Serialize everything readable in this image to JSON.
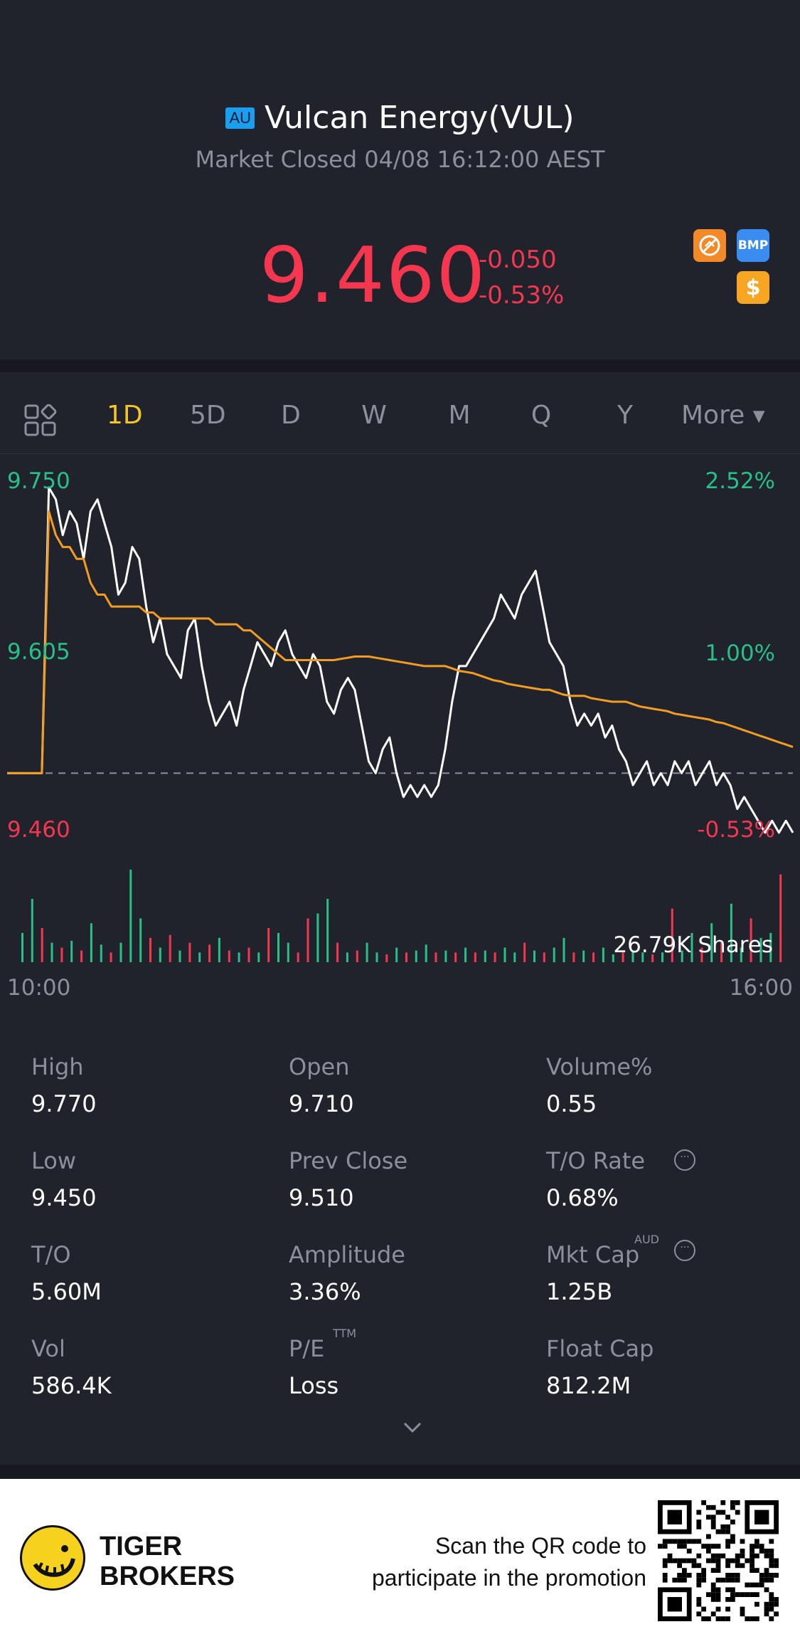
{
  "header": {
    "market_badge": "AU",
    "title": "Vulcan Energy(VUL)",
    "status": "Market Closed 04/08 16:12:00 AEST",
    "price": "9.460",
    "change": "-0.050",
    "change_pct": "-0.53%",
    "badges": [
      {
        "icon": "no-short-icon"
      },
      {
        "icon": "bmp-icon",
        "label": "BMP"
      },
      {
        "icon": "dollar-icon",
        "label": "$"
      }
    ]
  },
  "tabs": {
    "items": [
      {
        "label": "1D",
        "active": true
      },
      {
        "label": "5D",
        "active": false
      },
      {
        "label": "D",
        "active": false
      },
      {
        "label": "W",
        "active": false
      },
      {
        "label": "M",
        "active": false
      },
      {
        "label": "Q",
        "active": false
      },
      {
        "label": "Y",
        "active": false
      }
    ],
    "more_label": "More"
  },
  "chart_data": {
    "type": "line",
    "y_left_ticks": [
      "9.750",
      "9.605",
      "9.460"
    ],
    "y_right_ticks": [
      "2.52%",
      "1.00%",
      "-0.53%"
    ],
    "x_labels": [
      "10:00",
      "16:00"
    ],
    "ylim": [
      9.46,
      9.75
    ],
    "prev_close": 9.51,
    "volume_label": "26.79K Shares",
    "colors": {
      "price": "#ffffff",
      "avg": "#f39c24",
      "up": "#27c187",
      "down": "#f5364f"
    },
    "series": [
      {
        "values": [
          9.51,
          9.51,
          9.51,
          9.51,
          9.51,
          9.51,
          9.75,
          9.74,
          9.71,
          9.73,
          9.72,
          9.69,
          9.73,
          9.74,
          9.72,
          9.7,
          9.66,
          9.67,
          9.7,
          9.69,
          9.65,
          9.62,
          9.64,
          9.61,
          9.6,
          9.59,
          9.63,
          9.64,
          9.6,
          9.57,
          9.55,
          9.56,
          9.57,
          9.55,
          9.58,
          9.6,
          9.62,
          9.61,
          9.6,
          9.62,
          9.63,
          9.61,
          9.6,
          9.59,
          9.61,
          9.6,
          9.57,
          9.56,
          9.58,
          9.59,
          9.58,
          9.55,
          9.52,
          9.51,
          9.53,
          9.54,
          9.51,
          9.49,
          9.5,
          9.49,
          9.5,
          9.49,
          9.5,
          9.53,
          9.57,
          9.6,
          9.6,
          9.61,
          9.62,
          9.63,
          9.64,
          9.66,
          9.65,
          9.64,
          9.66,
          9.67,
          9.68,
          9.65,
          9.62,
          9.61,
          9.6,
          9.57,
          9.55,
          9.56,
          9.55,
          9.56,
          9.54,
          9.55,
          9.53,
          9.52,
          9.5,
          9.51,
          9.52,
          9.5,
          9.51,
          9.5,
          9.52,
          9.51,
          9.52,
          9.5,
          9.51,
          9.52,
          9.5,
          9.51,
          9.5,
          9.48,
          9.49,
          9.48,
          9.47,
          9.46,
          9.47,
          9.46,
          9.47,
          9.46
        ]
      },
      {
        "values": [
          9.51,
          9.51,
          9.51,
          9.51,
          9.51,
          9.51,
          9.73,
          9.71,
          9.7,
          9.7,
          9.69,
          9.69,
          9.67,
          9.66,
          9.66,
          9.65,
          9.65,
          9.65,
          9.65,
          9.65,
          9.645,
          9.645,
          9.64,
          9.64,
          9.64,
          9.64,
          9.64,
          9.64,
          9.64,
          9.64,
          9.635,
          9.635,
          9.635,
          9.635,
          9.63,
          9.63,
          9.625,
          9.62,
          9.615,
          9.61,
          9.605,
          9.605,
          9.605,
          9.605,
          9.605,
          9.605,
          9.605,
          9.605,
          9.606,
          9.607,
          9.608,
          9.608,
          9.608,
          9.607,
          9.606,
          9.605,
          9.604,
          9.603,
          9.602,
          9.601,
          9.6,
          9.6,
          9.6,
          9.6,
          9.598,
          9.596,
          9.595,
          9.594,
          9.592,
          9.59,
          9.588,
          9.587,
          9.585,
          9.584,
          9.583,
          9.582,
          9.581,
          9.58,
          9.58,
          9.578,
          9.576,
          9.575,
          9.575,
          9.575,
          9.573,
          9.572,
          9.571,
          9.57,
          9.57,
          9.57,
          9.568,
          9.566,
          9.565,
          9.564,
          9.563,
          9.562,
          9.56,
          9.559,
          9.558,
          9.557,
          9.556,
          9.555,
          9.553,
          9.552,
          9.55,
          9.548,
          9.546,
          9.544,
          9.542,
          9.54,
          9.538,
          9.536,
          9.534,
          9.532
        ]
      }
    ],
    "volume": [
      {
        "v": 0.3,
        "up": true
      },
      {
        "v": 0.65,
        "up": true
      },
      {
        "v": 0.35,
        "up": false
      },
      {
        "v": 0.2,
        "up": true
      },
      {
        "v": 0.15,
        "up": false
      },
      {
        "v": 0.22,
        "up": true
      },
      {
        "v": 0.12,
        "up": false
      },
      {
        "v": 0.4,
        "up": true
      },
      {
        "v": 0.18,
        "up": true
      },
      {
        "v": 0.1,
        "up": false
      },
      {
        "v": 0.2,
        "up": true
      },
      {
        "v": 0.95,
        "up": true
      },
      {
        "v": 0.45,
        "up": true
      },
      {
        "v": 0.25,
        "up": false
      },
      {
        "v": 0.15,
        "up": true
      },
      {
        "v": 0.28,
        "up": false
      },
      {
        "v": 0.12,
        "up": true
      },
      {
        "v": 0.2,
        "up": false
      },
      {
        "v": 0.1,
        "up": true
      },
      {
        "v": 0.18,
        "up": false
      },
      {
        "v": 0.25,
        "up": true
      },
      {
        "v": 0.12,
        "up": false
      },
      {
        "v": 0.1,
        "up": true
      },
      {
        "v": 0.15,
        "up": false
      },
      {
        "v": 0.1,
        "up": true
      },
      {
        "v": 0.35,
        "up": false
      },
      {
        "v": 0.3,
        "up": true
      },
      {
        "v": 0.2,
        "up": true
      },
      {
        "v": 0.1,
        "up": false
      },
      {
        "v": 0.45,
        "up": false
      },
      {
        "v": 0.5,
        "up": true
      },
      {
        "v": 0.65,
        "up": true
      },
      {
        "v": 0.2,
        "up": false
      },
      {
        "v": 0.1,
        "up": true
      },
      {
        "v": 0.12,
        "up": false
      },
      {
        "v": 0.2,
        "up": true
      },
      {
        "v": 0.1,
        "up": true
      },
      {
        "v": 0.08,
        "up": false
      },
      {
        "v": 0.15,
        "up": true
      },
      {
        "v": 0.1,
        "up": false
      },
      {
        "v": 0.12,
        "up": true
      },
      {
        "v": 0.18,
        "up": true
      },
      {
        "v": 0.1,
        "up": false
      },
      {
        "v": 0.12,
        "up": true
      },
      {
        "v": 0.1,
        "up": false
      },
      {
        "v": 0.15,
        "up": true
      },
      {
        "v": 0.1,
        "up": false
      },
      {
        "v": 0.12,
        "up": true
      },
      {
        "v": 0.1,
        "up": false
      },
      {
        "v": 0.15,
        "up": true
      },
      {
        "v": 0.1,
        "up": true
      },
      {
        "v": 0.2,
        "up": false
      },
      {
        "v": 0.12,
        "up": true
      },
      {
        "v": 0.1,
        "up": false
      },
      {
        "v": 0.15,
        "up": true
      },
      {
        "v": 0.25,
        "up": true
      },
      {
        "v": 0.1,
        "up": false
      },
      {
        "v": 0.12,
        "up": true
      },
      {
        "v": 0.1,
        "up": false
      },
      {
        "v": 0.15,
        "up": true
      },
      {
        "v": 0.08,
        "up": true
      },
      {
        "v": 0.1,
        "up": false
      },
      {
        "v": 0.12,
        "up": true
      },
      {
        "v": 0.1,
        "up": true
      },
      {
        "v": 0.08,
        "up": false
      },
      {
        "v": 0.1,
        "up": true
      },
      {
        "v": 0.55,
        "up": false
      },
      {
        "v": 0.12,
        "up": true
      },
      {
        "v": 0.3,
        "up": true
      },
      {
        "v": 0.15,
        "up": false
      },
      {
        "v": 0.4,
        "up": true
      },
      {
        "v": 0.2,
        "up": false
      },
      {
        "v": 0.6,
        "up": true
      },
      {
        "v": 0.15,
        "up": true
      },
      {
        "v": 0.45,
        "up": false
      },
      {
        "v": 0.25,
        "up": true
      },
      {
        "v": 0.3,
        "up": true
      },
      {
        "v": 0.9,
        "up": false
      }
    ]
  },
  "stats": {
    "high_label": "High",
    "high": "9.770",
    "open_label": "Open",
    "open": "9.710",
    "volpct_label": "Volume%",
    "volpct": "0.55",
    "low_label": "Low",
    "low": "9.450",
    "prevclose_label": "Prev Close",
    "prevclose": "9.510",
    "torate_label": "T/O Rate",
    "torate": "0.68%",
    "to_label": "T/O",
    "to": "5.60M",
    "amp_label": "Amplitude",
    "amp": "3.36%",
    "mktcap_label": "Mkt Cap",
    "mktcap_sup": "AUD",
    "mktcap": "1.25B",
    "vol_label": "Vol",
    "vol": "586.4K",
    "pe_label": "P/E",
    "pe_sup": "TTM",
    "pe": "Loss",
    "floatcap_label": "Float Cap",
    "floatcap": "812.2M"
  },
  "footer": {
    "brand_line1": "TIGER",
    "brand_line2": "BROKERS",
    "promo_line1": "Scan the QR code to",
    "promo_line2": "participate in the promotion"
  }
}
